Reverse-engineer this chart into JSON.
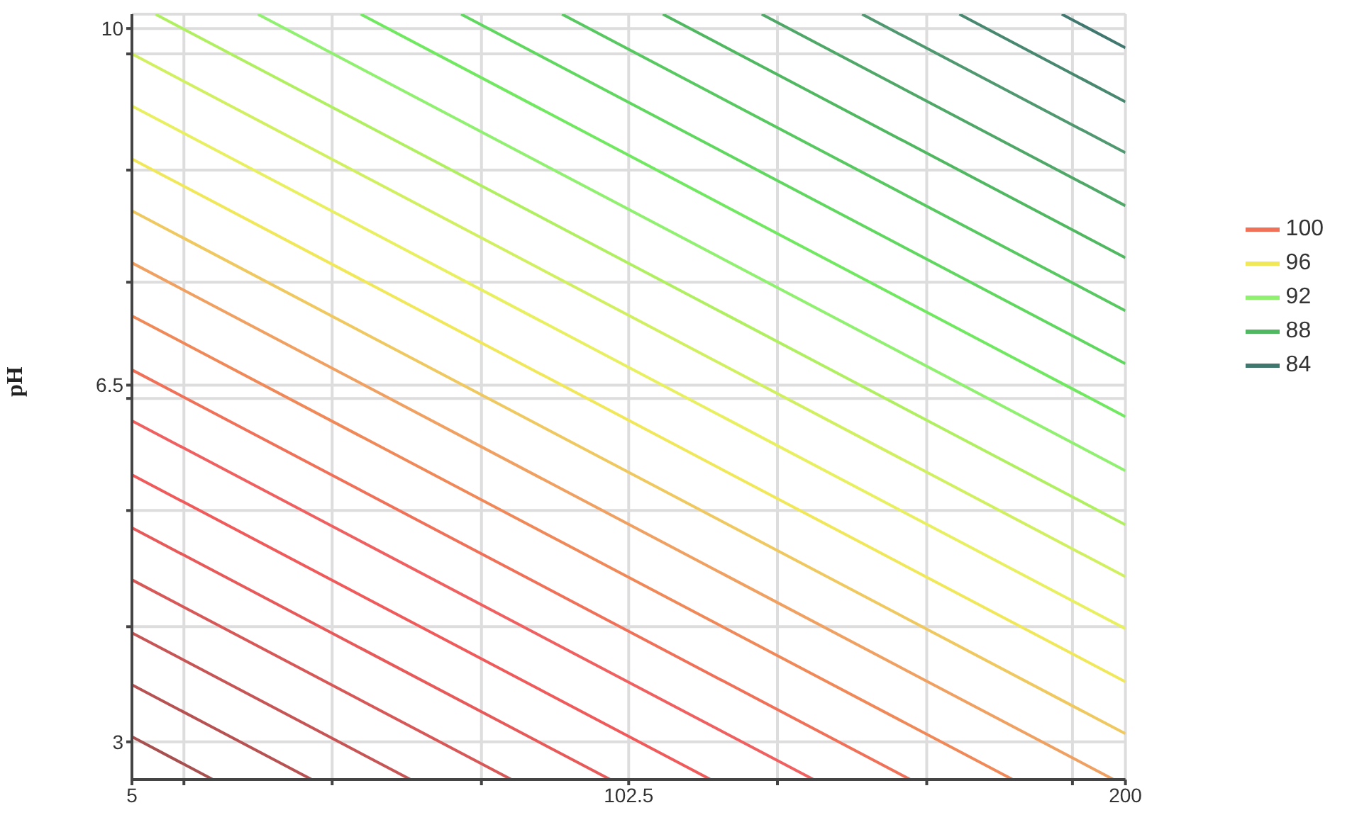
{
  "chart_data": {
    "type": "line",
    "ylabel": "pH",
    "xlim": [
      5,
      200
    ],
    "ylim": [
      2.63,
      10.14
    ],
    "xticks": [
      5,
      {
        "value": 15.2,
        "label": null
      },
      {
        "value": 44.3,
        "label": null
      },
      {
        "value": 73.6,
        "label": null
      },
      102.5,
      {
        "value": 131.7,
        "label": null
      },
      {
        "value": 161,
        "label": null
      },
      {
        "value": 189.6,
        "label": null
      },
      200
    ],
    "yticks": [
      3,
      {
        "value": 4.13,
        "label": null
      },
      {
        "value": 5.27,
        "label": null
      },
      {
        "value": 6.37,
        "label": null
      },
      6.5,
      {
        "value": 7.51,
        "label": null
      },
      {
        "value": 8.61,
        "label": null
      },
      {
        "value": 9.75,
        "label": null
      },
      10
    ],
    "grid": true,
    "legend": "right",
    "marker": "none",
    "line_style": "solid",
    "series": [
      {
        "color": "#a85050",
        "x": [
          5,
          20.9
        ],
        "values": [
          3.05,
          2.63
        ]
      },
      {
        "color": "#b85252",
        "x": [
          5,
          40.3
        ],
        "values": [
          3.56,
          2.63
        ]
      },
      {
        "color": "#c85555",
        "x": [
          5,
          59.7
        ],
        "values": [
          4.07,
          2.63
        ]
      },
      {
        "color": "#d85858",
        "x": [
          5,
          79.5
        ],
        "values": [
          4.59,
          2.63
        ]
      },
      {
        "color": "#e85a5a",
        "x": [
          5,
          98.9
        ],
        "values": [
          5.1,
          2.63
        ]
      },
      {
        "color": "#f05a5a",
        "x": [
          5,
          118.6
        ],
        "values": [
          5.62,
          2.63
        ]
      },
      {
        "color": "#f06060",
        "x": [
          5,
          138.8
        ],
        "values": [
          6.15,
          2.63
        ]
      },
      {
        "name": "100",
        "color": "#f07058",
        "x": [
          5,
          157.8
        ],
        "values": [
          6.65,
          2.63
        ]
      },
      {
        "color": "#f08858",
        "x": [
          5,
          177.9
        ],
        "values": [
          7.18,
          2.63
        ]
      },
      {
        "color": "#f0a060",
        "x": [
          5,
          197.7
        ],
        "values": [
          7.7,
          2.63
        ]
      },
      {
        "color": "#f0c860",
        "x": [
          5,
          200
        ],
        "values": [
          8.21,
          3.08
        ]
      },
      {
        "name": "96",
        "color": "#f0e858",
        "x": [
          5,
          200
        ],
        "values": [
          8.72,
          3.59
        ]
      },
      {
        "color": "#e8f060",
        "x": [
          5,
          200
        ],
        "values": [
          9.24,
          4.11
        ]
      },
      {
        "color": "#d0f060",
        "x": [
          5,
          200
        ],
        "values": [
          9.75,
          4.62
        ]
      },
      {
        "color": "#b0f060",
        "x": [
          9.6,
          200
        ],
        "values": [
          10.14,
          5.13
        ]
      },
      {
        "name": "92",
        "color": "#90f070",
        "x": [
          29.7,
          200
        ],
        "values": [
          10.14,
          5.66
        ]
      },
      {
        "color": "#70e860",
        "x": [
          49.9,
          200
        ],
        "values": [
          10.14,
          6.19
        ]
      },
      {
        "color": "#60d860",
        "x": [
          69.6,
          200
        ],
        "values": [
          10.14,
          6.71
        ]
      },
      {
        "color": "#58c860",
        "x": [
          89.4,
          200
        ],
        "values": [
          10.14,
          7.23
        ]
      },
      {
        "name": "88",
        "color": "#50b860",
        "x": [
          109.2,
          200
        ],
        "values": [
          10.14,
          7.75
        ]
      },
      {
        "color": "#50a868",
        "x": [
          128.6,
          200
        ],
        "values": [
          10.14,
          8.26
        ]
      },
      {
        "color": "#509870",
        "x": [
          148.3,
          200
        ],
        "values": [
          10.14,
          8.78
        ]
      },
      {
        "color": "#488870",
        "x": [
          167.4,
          200
        ],
        "values": [
          10.14,
          9.28
        ]
      },
      {
        "name": "84",
        "color": "#407870",
        "x": [
          187.5,
          200
        ],
        "values": [
          10.14,
          9.81
        ]
      }
    ]
  }
}
